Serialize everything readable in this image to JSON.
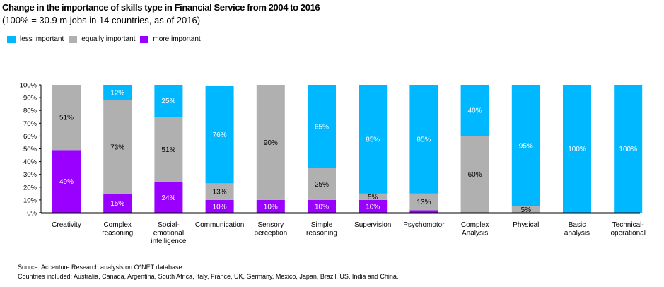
{
  "chart_data": {
    "type": "bar",
    "stacked": true,
    "title": "Change in the importance of skills type in Financial Service from 2004 to 2016",
    "subtitle": "(100% = 30.9 m jobs in 14 countries, as of 2016)",
    "xlabel": "",
    "ylabel": "",
    "ylim": [
      0,
      100
    ],
    "yticks": [
      "0%",
      "10%",
      "20%",
      "30%",
      "40%",
      "50%",
      "60%",
      "70%",
      "80%",
      "90%",
      "100%"
    ],
    "legend_position": "top-left",
    "categories": [
      [
        "Creativity"
      ],
      [
        "Complex",
        "reasoning"
      ],
      [
        "Social-",
        "emotional",
        "intelligence"
      ],
      [
        "Communication"
      ],
      [
        "Sensory",
        "perception"
      ],
      [
        "Simple",
        "reasoning"
      ],
      [
        "Supervision"
      ],
      [
        "Psychomotor"
      ],
      [
        "Complex",
        "Analysis"
      ],
      [
        "Physical"
      ],
      [
        "Basic",
        "analysis"
      ],
      [
        "Technical-",
        "operational"
      ]
    ],
    "series": [
      {
        "name": "more important",
        "color": "#9900FF",
        "label_color": "#ffffff",
        "values": [
          49,
          15,
          24,
          10,
          10,
          10,
          10,
          2,
          0,
          0,
          0,
          0
        ],
        "labels": [
          "49%",
          "15%",
          "24%",
          "10%",
          "10%",
          "10%",
          "10%",
          "",
          "",
          "",
          "",
          ""
        ]
      },
      {
        "name": "equally important",
        "color": "#B0B0B0",
        "label_color": "#000000",
        "values": [
          51,
          73,
          51,
          13,
          90,
          25,
          5,
          13,
          60,
          5,
          0,
          0
        ],
        "labels": [
          "51%",
          "73%",
          "51%",
          "13%",
          "90%",
          "25%",
          "5%",
          "13%",
          "60%",
          "5%",
          "",
          ""
        ]
      },
      {
        "name": "less important",
        "color": "#00B8FF",
        "label_color": "#ffffff",
        "values": [
          0,
          12,
          25,
          76,
          0,
          65,
          85,
          85,
          40,
          95,
          100,
          100
        ],
        "labels": [
          "",
          "12%",
          "25%",
          "76%",
          "",
          "65%",
          "85%",
          "85%",
          "40%",
          "95%",
          "100%",
          "100%"
        ]
      }
    ]
  },
  "legend": [
    {
      "label": "less important",
      "color": "#00B8FF"
    },
    {
      "label": "equally important",
      "color": "#B0B0B0"
    },
    {
      "label": "more important",
      "color": "#9900FF"
    }
  ],
  "footer": {
    "source": "Source: Accenture Research analysis on O*NET database",
    "countries": "Countries included: Australia, Canada, Argentina,  South Africa, Italy, France, UK, Germany,  Mexico, Japan, Brazil, US, India and China."
  }
}
